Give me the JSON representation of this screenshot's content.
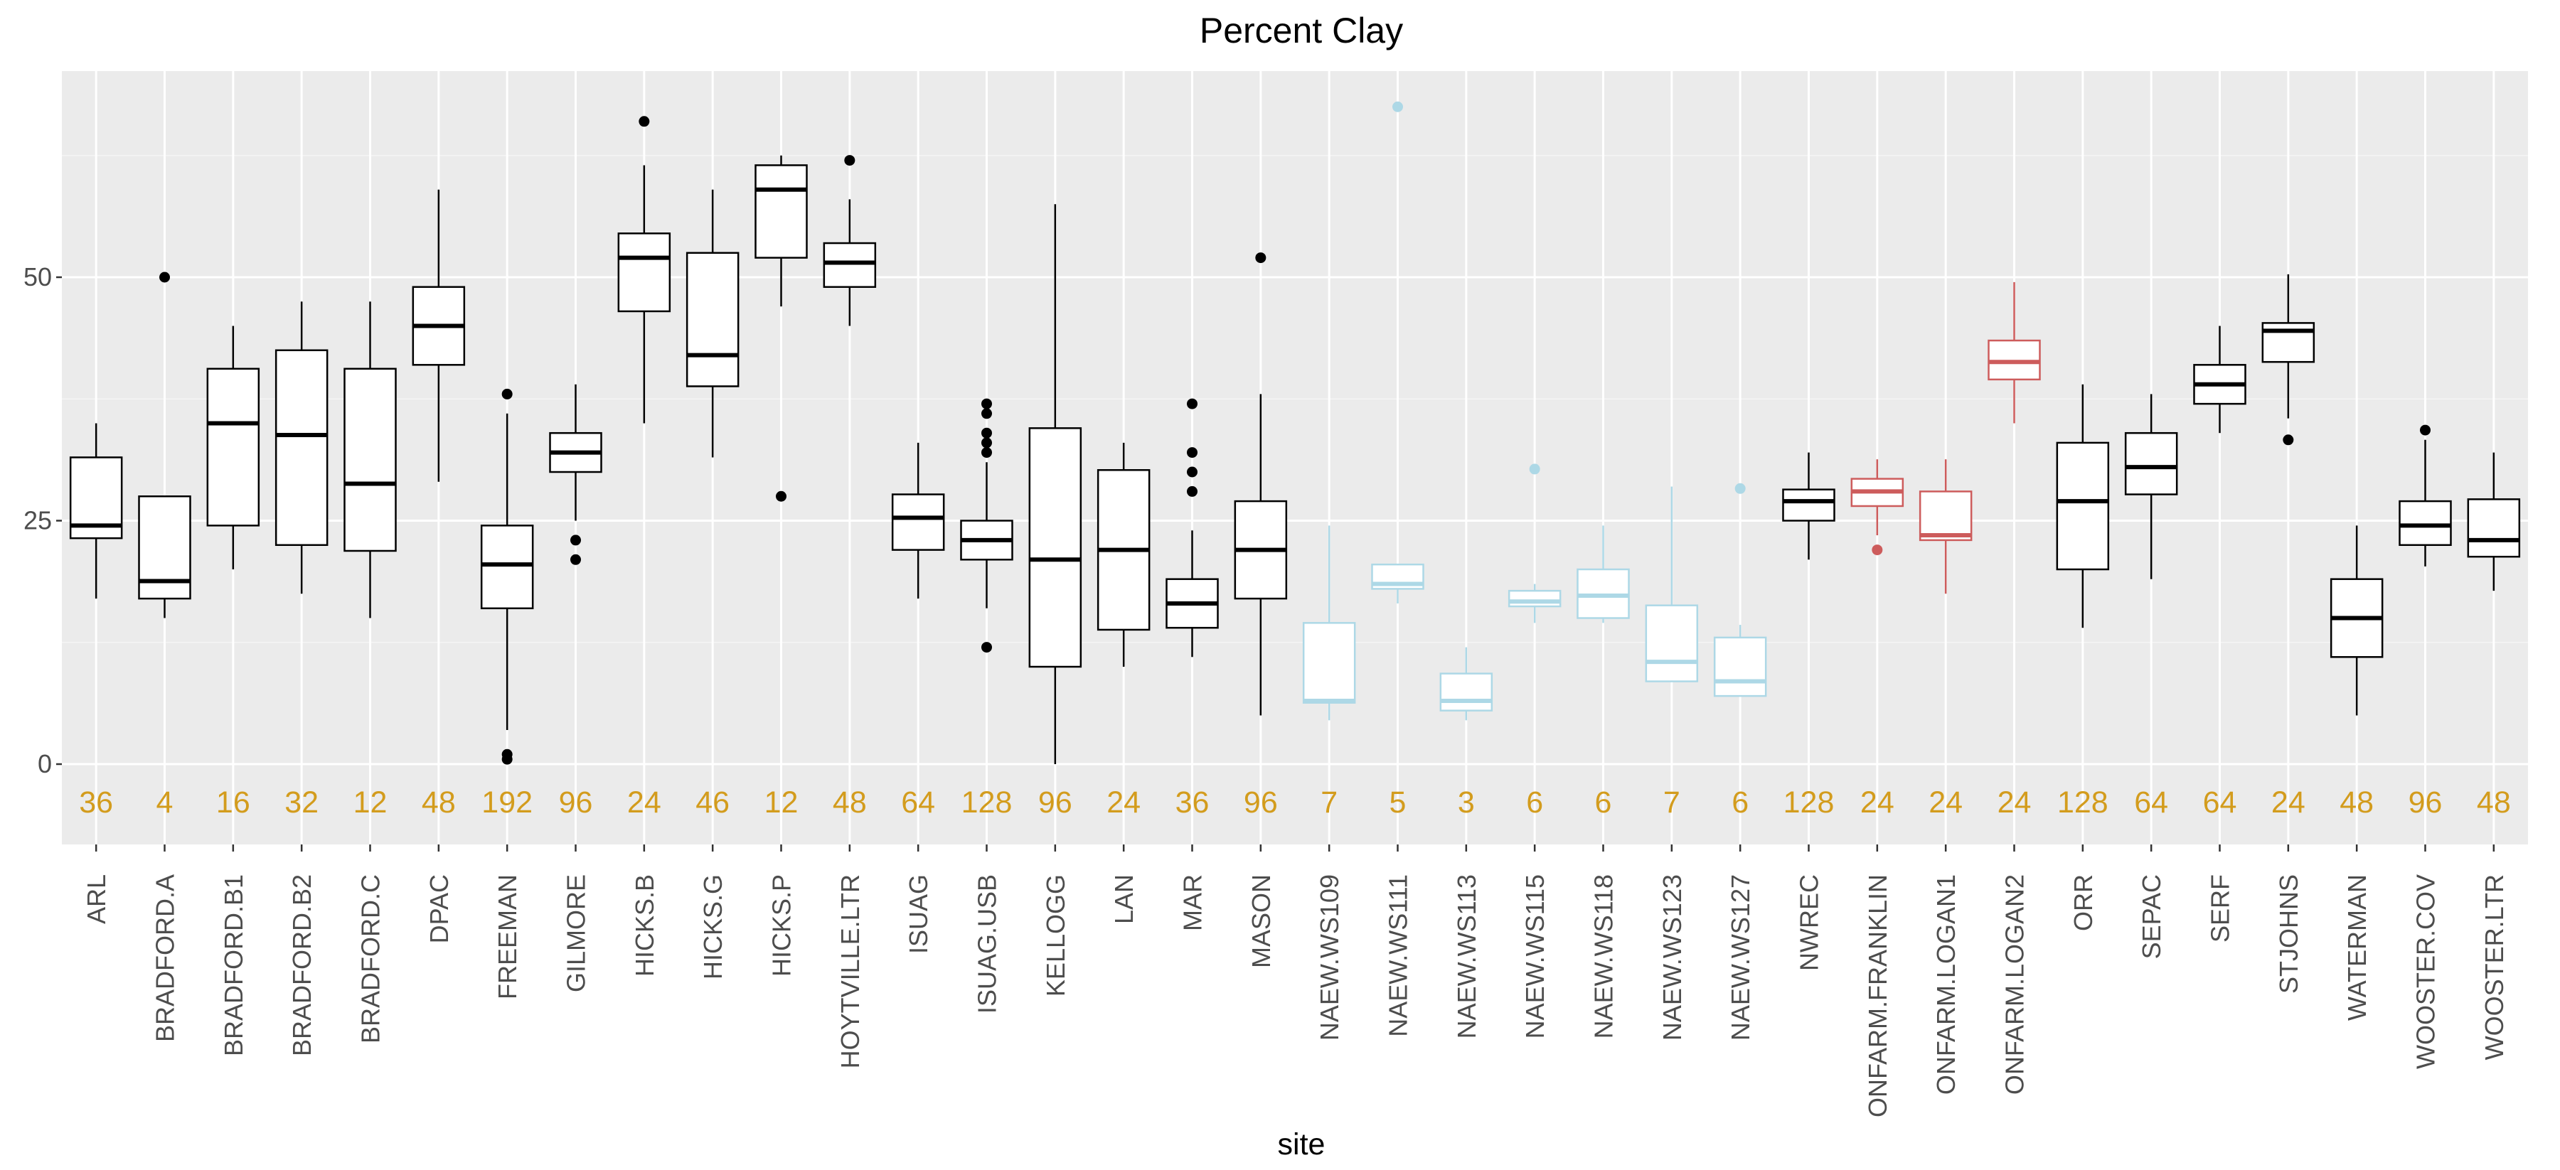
{
  "chart_data": {
    "type": "box",
    "title": "Percent Clay",
    "xlabel": "site",
    "ylabel": "",
    "ylim": [
      -8,
      71
    ],
    "yticks": [
      0,
      25,
      50
    ],
    "grid": true,
    "legend": "none",
    "colors": {
      "panel": "#ebebeb",
      "grid_major": "#ffffff",
      "grid_minor": "#f5f5f5",
      "default": "#000000",
      "light_blue": "#add8e6",
      "red": "#cd5c5c",
      "count_label": "#d39c1d",
      "tick_text": "#4d4d4d"
    },
    "categories": [
      "ARL",
      "BRADFORD.A",
      "BRADFORD.B1",
      "BRADFORD.B2",
      "BRADFORD.C",
      "DPAC",
      "FREEMAN",
      "GILMORE",
      "HICKS.B",
      "HICKS.G",
      "HICKS.P",
      "HOYTVILLE.LTR",
      "ISUAG",
      "ISUAG.USB",
      "KELLOGG",
      "LAN",
      "MAR",
      "MASON",
      "NAEW.WS109",
      "NAEW.WS111",
      "NAEW.WS113",
      "NAEW.WS115",
      "NAEW.WS118",
      "NAEW.WS123",
      "NAEW.WS127",
      "NWREC",
      "ONFARM.FRANKLIN",
      "ONFARM.LOGAN1",
      "ONFARM.LOGAN2",
      "ORR",
      "SEPAC",
      "SERF",
      "STJOHNS",
      "WATERMAN",
      "WOOSTER.COV",
      "WOOSTER.LTR"
    ],
    "boxes": [
      {
        "site": "ARL",
        "min": 17,
        "q1": 23.2,
        "median": 24.5,
        "q3": 31.5,
        "max": 35,
        "outliers": [],
        "n": "36",
        "color": "default"
      },
      {
        "site": "BRADFORD.A",
        "min": 15,
        "q1": 17,
        "median": 18.8,
        "q3": 27.5,
        "max": 27.5,
        "outliers": [
          50
        ],
        "n": "4",
        "color": "default"
      },
      {
        "site": "BRADFORD.B1",
        "min": 20,
        "q1": 24.5,
        "median": 35,
        "q3": 40.6,
        "max": 45,
        "outliers": [],
        "n": "16",
        "color": "default"
      },
      {
        "site": "BRADFORD.B2",
        "min": 17.5,
        "q1": 22.5,
        "median": 33.8,
        "q3": 42.5,
        "max": 47.5,
        "outliers": [],
        "n": "32",
        "color": "default"
      },
      {
        "site": "BRADFORD.C",
        "min": 15,
        "q1": 21.9,
        "median": 28.8,
        "q3": 40.6,
        "max": 47.5,
        "outliers": [],
        "n": "12",
        "color": "default"
      },
      {
        "site": "DPAC",
        "min": 29,
        "q1": 41,
        "median": 45,
        "q3": 49,
        "max": 59,
        "outliers": [],
        "n": "48",
        "color": "default"
      },
      {
        "site": "FREEMAN",
        "min": 3.5,
        "q1": 16,
        "median": 20.5,
        "q3": 24.5,
        "max": 36,
        "outliers": [
          38,
          1,
          0.5
        ],
        "n": "192",
        "color": "default"
      },
      {
        "site": "GILMORE",
        "min": 25,
        "q1": 30,
        "median": 32,
        "q3": 34,
        "max": 39,
        "outliers": [
          23,
          21
        ],
        "n": "96",
        "color": "default"
      },
      {
        "site": "HICKS.B",
        "min": 35,
        "q1": 46.5,
        "median": 52,
        "q3": 54.5,
        "max": 61.5,
        "outliers": [
          66
        ],
        "n": "24",
        "color": "default"
      },
      {
        "site": "HICKS.G",
        "min": 31.5,
        "q1": 38.8,
        "median": 42,
        "q3": 52.5,
        "max": 59,
        "outliers": [],
        "n": "46",
        "color": "default"
      },
      {
        "site": "HICKS.P",
        "min": 47,
        "q1": 52,
        "median": 59,
        "q3": 61.5,
        "max": 62.5,
        "outliers": [
          27.5
        ],
        "n": "12",
        "color": "default"
      },
      {
        "site": "HOYTVILLE.LTR",
        "min": 45,
        "q1": 49,
        "median": 51.5,
        "q3": 53.5,
        "max": 58,
        "outliers": [
          62
        ],
        "n": "48",
        "color": "default"
      },
      {
        "site": "ISUAG",
        "min": 17,
        "q1": 22,
        "median": 25.3,
        "q3": 27.7,
        "max": 33,
        "outliers": [],
        "n": "64",
        "color": "default"
      },
      {
        "site": "ISUAG.USB",
        "min": 16,
        "q1": 21,
        "median": 23,
        "q3": 25,
        "max": 31,
        "outliers": [
          37,
          36,
          34,
          33,
          32,
          12
        ],
        "n": "128",
        "color": "default"
      },
      {
        "site": "KELLOGG",
        "min": 0,
        "q1": 10,
        "median": 21,
        "q3": 34.5,
        "max": 57.5,
        "outliers": [],
        "n": "96",
        "color": "default"
      },
      {
        "site": "LAN",
        "min": 10,
        "q1": 13.8,
        "median": 22,
        "q3": 30.2,
        "max": 33,
        "outliers": [],
        "n": "24",
        "color": "default"
      },
      {
        "site": "MAR",
        "min": 11,
        "q1": 14,
        "median": 16.5,
        "q3": 19,
        "max": 24,
        "outliers": [
          37,
          32,
          30,
          28
        ],
        "n": "36",
        "color": "default"
      },
      {
        "site": "MASON",
        "min": 5,
        "q1": 17,
        "median": 22,
        "q3": 27,
        "max": 38,
        "outliers": [
          52
        ],
        "n": "96",
        "color": "default"
      },
      {
        "site": "NAEW.WS109",
        "min": 4.5,
        "q1": 6.3,
        "median": 6.5,
        "q3": 14.5,
        "max": 24.5,
        "outliers": [],
        "n": "7",
        "color": "light_blue"
      },
      {
        "site": "NAEW.WS111",
        "min": 16.5,
        "q1": 18,
        "median": 18.5,
        "q3": 20.5,
        "max": 20.5,
        "outliers": [
          67.5
        ],
        "n": "5",
        "color": "light_blue"
      },
      {
        "site": "NAEW.WS113",
        "min": 4.5,
        "q1": 5.5,
        "median": 6.5,
        "q3": 9.3,
        "max": 12,
        "outliers": [],
        "n": "3",
        "color": "light_blue"
      },
      {
        "site": "NAEW.WS115",
        "min": 14.5,
        "q1": 16.2,
        "median": 16.7,
        "q3": 17.8,
        "max": 18.5,
        "outliers": [
          30.3
        ],
        "n": "6",
        "color": "light_blue"
      },
      {
        "site": "NAEW.WS118",
        "min": 14.5,
        "q1": 15,
        "median": 17.3,
        "q3": 20,
        "max": 24.5,
        "outliers": [],
        "n": "6",
        "color": "light_blue"
      },
      {
        "site": "NAEW.WS123",
        "min": 8.5,
        "q1": 8.5,
        "median": 10.5,
        "q3": 16.3,
        "max": 28.5,
        "outliers": [],
        "n": "7",
        "color": "light_blue"
      },
      {
        "site": "NAEW.WS127",
        "min": 7,
        "q1": 7,
        "median": 8.5,
        "q3": 13,
        "max": 14.3,
        "outliers": [
          28.3
        ],
        "n": "6",
        "color": "light_blue"
      },
      {
        "site": "NWREC",
        "min": 21,
        "q1": 25,
        "median": 27,
        "q3": 28.2,
        "max": 32,
        "outliers": [],
        "n": "128",
        "color": "default"
      },
      {
        "site": "ONFARM.FRANKLIN",
        "min": 23.5,
        "q1": 26.5,
        "median": 28,
        "q3": 29.3,
        "max": 31.3,
        "outliers": [
          22
        ],
        "n": "24",
        "color": "red"
      },
      {
        "site": "ONFARM.LOGAN1",
        "min": 17.5,
        "q1": 23,
        "median": 23.5,
        "q3": 28,
        "max": 31.3,
        "outliers": [],
        "n": "24",
        "color": "red"
      },
      {
        "site": "ONFARM.LOGAN2",
        "min": 35,
        "q1": 39.5,
        "median": 41.3,
        "q3": 43.5,
        "max": 49.5,
        "outliers": [],
        "n": "24",
        "color": "red"
      },
      {
        "site": "ORR",
        "min": 14,
        "q1": 20,
        "median": 27,
        "q3": 33,
        "max": 39,
        "outliers": [],
        "n": "128",
        "color": "default"
      },
      {
        "site": "SEPAC",
        "min": 19,
        "q1": 27.7,
        "median": 30.5,
        "q3": 34,
        "max": 38,
        "outliers": [],
        "n": "64",
        "color": "default"
      },
      {
        "site": "SERF",
        "min": 34,
        "q1": 37,
        "median": 39,
        "q3": 41,
        "max": 45,
        "outliers": [],
        "n": "64",
        "color": "default"
      },
      {
        "site": "STJOHNS",
        "min": 35.5,
        "q1": 41.3,
        "median": 44.5,
        "q3": 45.3,
        "max": 50.3,
        "outliers": [
          33.3
        ],
        "n": "24",
        "color": "default"
      },
      {
        "site": "WATERMAN",
        "min": 5,
        "q1": 11,
        "median": 15,
        "q3": 19,
        "max": 24.5,
        "outliers": [],
        "n": "48",
        "color": "default"
      },
      {
        "site": "WOOSTER.COV",
        "min": 20.3,
        "q1": 22.5,
        "median": 24.5,
        "q3": 27,
        "max": 33.3,
        "outliers": [
          34.3
        ],
        "n": "96",
        "color": "default"
      },
      {
        "site": "WOOSTER.LTR",
        "min": 17.8,
        "q1": 21.3,
        "median": 23,
        "q3": 27.2,
        "max": 32,
        "outliers": [],
        "n": "48",
        "color": "default"
      }
    ]
  }
}
